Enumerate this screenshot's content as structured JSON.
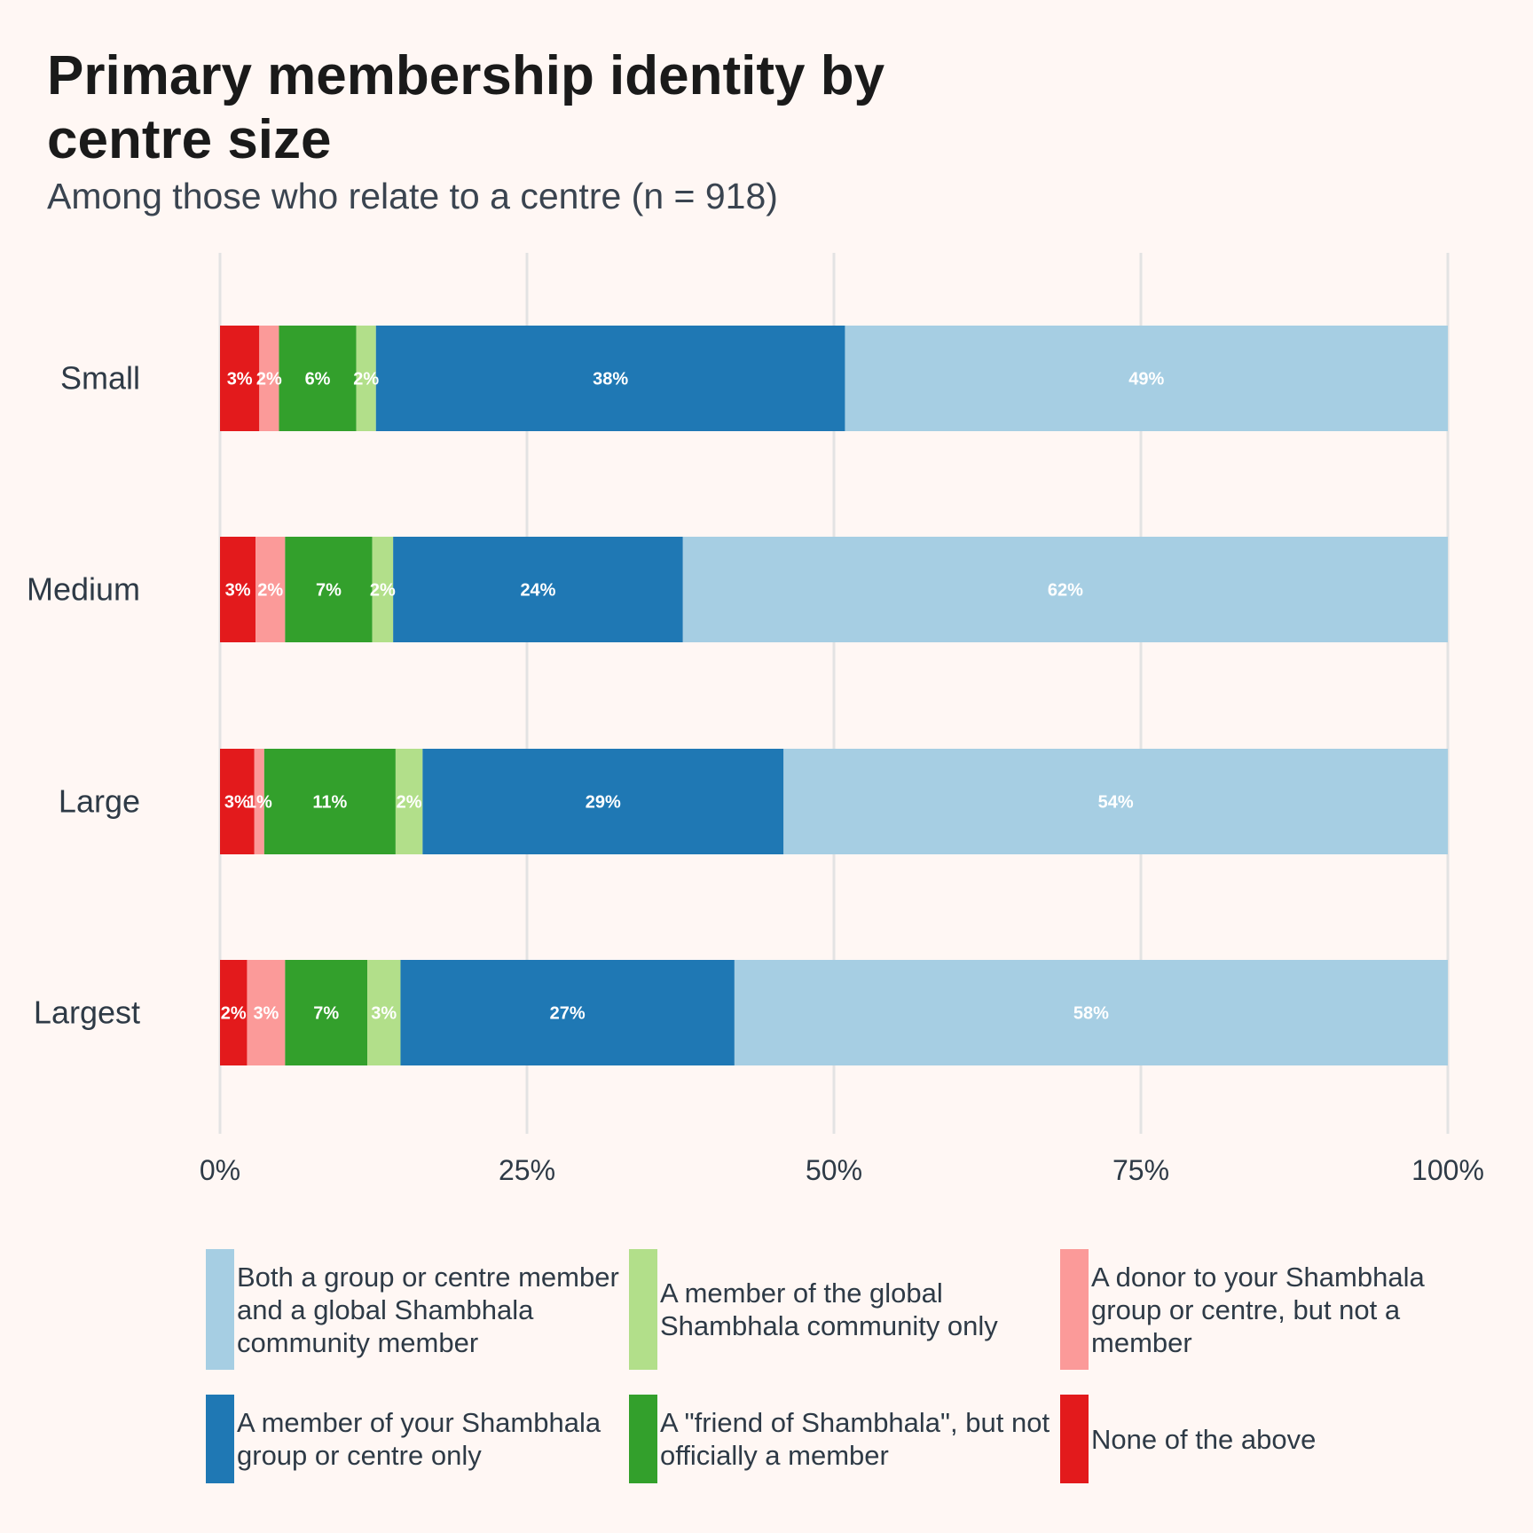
{
  "chart_data": {
    "type": "bar",
    "orientation": "horizontal",
    "stacked": true,
    "title": "Primary membership identity by centre size",
    "subtitle": "Among those who relate to a centre (n = 918)",
    "categories": [
      "Small",
      "Medium",
      "Large",
      "Largest"
    ],
    "xlim": [
      0,
      100
    ],
    "x_ticks": [
      "0%",
      "25%",
      "50%",
      "75%",
      "100%"
    ],
    "x_tick_values": [
      0,
      25,
      50,
      75,
      100
    ],
    "grid": true,
    "legend_position": "bottom",
    "series": [
      {
        "name": "None of the above",
        "color": "#e31a1c",
        "values": [
          3.2,
          2.9,
          2.8,
          2.2
        ],
        "labels": [
          "3%",
          "3%",
          "3%",
          "2%"
        ]
      },
      {
        "name": "A donor to your Shambhala group or centre, but not a member",
        "color": "#fb9a99",
        "values": [
          1.6,
          2.4,
          0.8,
          3.1
        ],
        "labels": [
          "2%",
          "2%",
          "1%",
          "3%"
        ]
      },
      {
        "name": "A \"friend of Shambhala\", but not officially a member",
        "color": "#33a02c",
        "values": [
          6.3,
          7.1,
          10.7,
          6.7
        ],
        "labels": [
          "6%",
          "7%",
          "11%",
          "7%"
        ]
      },
      {
        "name": "A member of the global Shambhala community only",
        "color": "#b2df8a",
        "values": [
          1.6,
          1.7,
          2.2,
          2.7
        ],
        "labels": [
          "2%",
          "2%",
          "2%",
          "3%"
        ]
      },
      {
        "name": "A member of your Shambhala group or centre only",
        "color": "#1f78b4",
        "values": [
          38.2,
          23.6,
          29.4,
          27.2
        ],
        "labels": [
          "38%",
          "24%",
          "29%",
          "27%"
        ]
      },
      {
        "name": "Both a group or centre member and a global Shambhala community member",
        "color": "#a6cee3",
        "values": [
          49.1,
          62.3,
          54.1,
          58.1
        ],
        "labels": [
          "49%",
          "62%",
          "54%",
          "58%"
        ]
      }
    ]
  },
  "legend": [
    {
      "label": "Both a group or centre member and a global Shambhala community member",
      "color": "#a6cee3"
    },
    {
      "label": "A member of the global Shambhala community only",
      "color": "#b2df8a"
    },
    {
      "label": "A donor to your Shambhala group or centre, but not a member",
      "color": "#fb9a99"
    },
    {
      "label": "A member of your Shambhala group or centre only",
      "color": "#1f78b4"
    },
    {
      "label": "A \"friend of Shambhala\", but not officially a member",
      "color": "#33a02c"
    },
    {
      "label": "None of the above",
      "color": "#e31a1c"
    }
  ]
}
